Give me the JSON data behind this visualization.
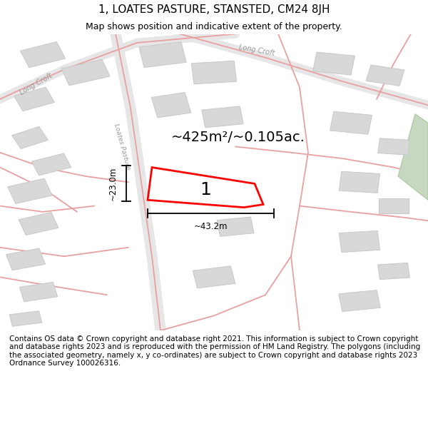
{
  "title": "1, LOATES PASTURE, STANSTED, CM24 8JH",
  "subtitle": "Map shows position and indicative extent of the property.",
  "footer": "Contains OS data © Crown copyright and database right 2021. This information is subject to Crown copyright and database rights 2023 and is reproduced with the permission of HM Land Registry. The polygons (including the associated geometry, namely x, y co-ordinates) are subject to Crown copyright and database rights 2023 Ordnance Survey 100026316.",
  "map_bg": "#f2f2f2",
  "area_label": "~425m²/~0.105ac.",
  "plot_label": "1",
  "width_label": "~43.2m",
  "height_label": "~23.0m",
  "road_color": "#e8a0a0",
  "road_bg": "#e8e8e8",
  "building_color": "#d8d8d8",
  "building_outline": "#c8c8c8",
  "green_color": "#c8d8c0",
  "title_fontsize": 11,
  "subtitle_fontsize": 9,
  "footer_fontsize": 7.5,
  "label_fontsize": 14,
  "dim_fontsize": 8.5
}
